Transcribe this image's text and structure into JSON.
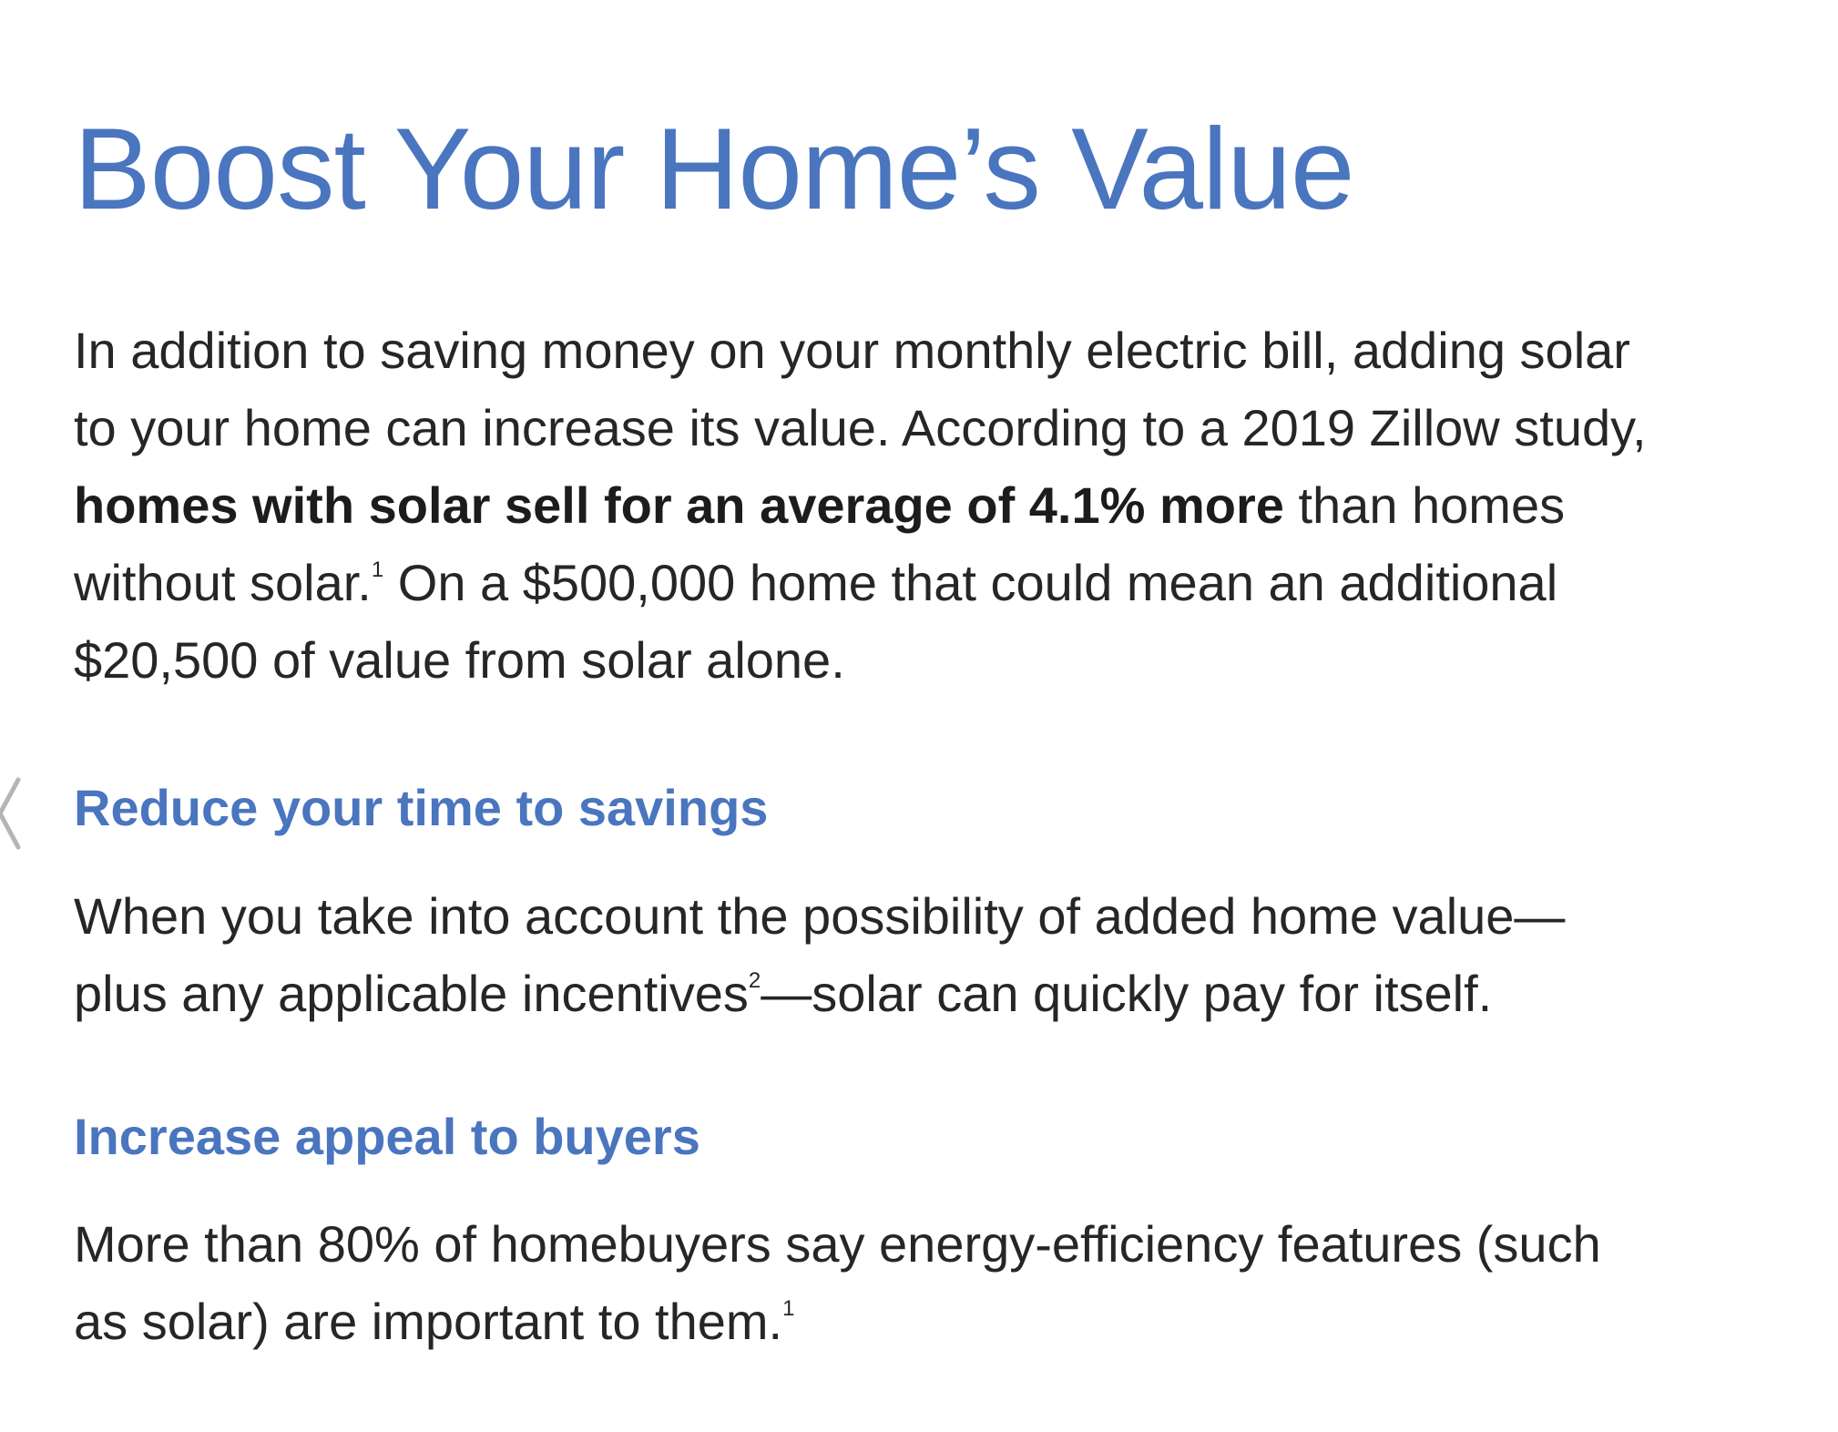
{
  "page": {
    "title": "Boost Your Home’s Value"
  },
  "intro": {
    "text_before": "In addition to saving money on your monthly electric bill, adding solar to your home can increase its value. According to a 2019 Zillow study, ",
    "bold": "homes with solar sell for an average of 4.1% more",
    "text_after_bold": " than homes without solar.",
    "footnote": "1",
    "text_end": " On a $500,000 home that could mean an additional $20,500 of value from solar alone."
  },
  "sections": [
    {
      "heading": "Reduce your time to savings",
      "body_before": "When you take into account the possibility of added home value—plus any applicable incentives",
      "footnote": "2",
      "body_after": "—solar can quickly pay for itself."
    },
    {
      "heading": "Increase appeal to buyers",
      "body_before": "More than 80% of homebuyers say energy-efficiency features (such as solar) are important to them.",
      "footnote": "1",
      "body_after": ""
    }
  ],
  "navigation": {
    "prev_icon": "chevron-left-icon"
  },
  "colors": {
    "accent": "#4a75bf",
    "body_text": "#262626",
    "background": "#ffffff"
  }
}
